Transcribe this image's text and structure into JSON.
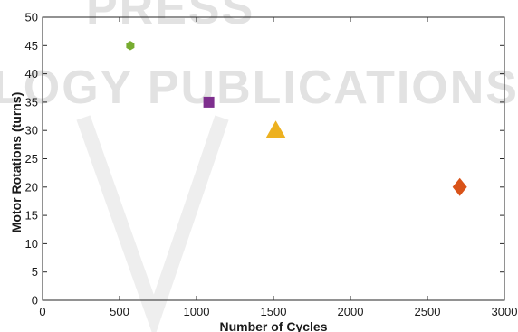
{
  "watermark": {
    "text_top": "PRESS",
    "text_mid": "LOGY PUBLICATIONS"
  },
  "chart_data": {
    "type": "scatter",
    "title": "",
    "xlabel": "Number of Cycles",
    "ylabel": "Motor Rotations (turns)",
    "xlim": [
      0,
      3000
    ],
    "ylim": [
      0,
      50
    ],
    "xticks": [
      0,
      500,
      1000,
      1500,
      2000,
      2500,
      3000
    ],
    "yticks": [
      0,
      5,
      10,
      15,
      20,
      25,
      30,
      35,
      40,
      45,
      50
    ],
    "grid": false,
    "legend": "none",
    "points": [
      {
        "x": 570,
        "y": 45,
        "marker": "hexagram",
        "color": "#77ac30"
      },
      {
        "x": 1080,
        "y": 35,
        "marker": "square",
        "color": "#7e2f8e"
      },
      {
        "x": 1515,
        "y": 30,
        "marker": "triangle",
        "color": "#edb120"
      },
      {
        "x": 2710,
        "y": 20,
        "marker": "diamond",
        "color": "#d95319"
      }
    ]
  }
}
